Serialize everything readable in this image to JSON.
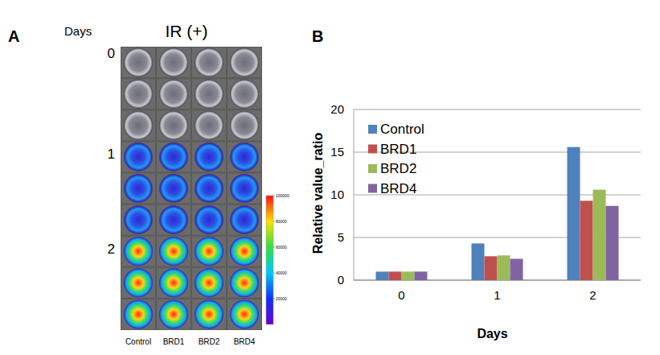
{
  "figure": {
    "panel_labels": [
      "A",
      "B"
    ]
  },
  "panel_a": {
    "title": "IR (+)",
    "row_header": "Days",
    "rows": [
      "0",
      "1",
      "2"
    ],
    "columns": [
      "Control",
      "BRD1",
      "BRD2",
      "BRD4"
    ],
    "colorbar": {
      "range": [
        0,
        100000
      ],
      "ticks": [
        20000,
        40000,
        60000,
        80000,
        100000
      ]
    }
  },
  "chart_data": {
    "type": "bar",
    "x_label": "Days",
    "y_label": "Relative value_ratio",
    "categories": [
      "0",
      "1",
      "2"
    ],
    "series": [
      {
        "name": "Control",
        "color": "#4f81bd",
        "values": [
          1,
          4.3,
          15.6
        ]
      },
      {
        "name": "BRD1",
        "color": "#c0504d",
        "values": [
          1,
          2.8,
          9.3
        ]
      },
      {
        "name": "BRD2",
        "color": "#9bbb59",
        "values": [
          1,
          2.9,
          10.6
        ]
      },
      {
        "name": "BRD4",
        "color": "#8064a2",
        "values": [
          1,
          2.5,
          8.7
        ]
      }
    ],
    "ylim": [
      0,
      20
    ],
    "yticks": [
      0,
      5,
      10,
      15,
      20
    ],
    "grid": true,
    "legend": "upper left"
  }
}
